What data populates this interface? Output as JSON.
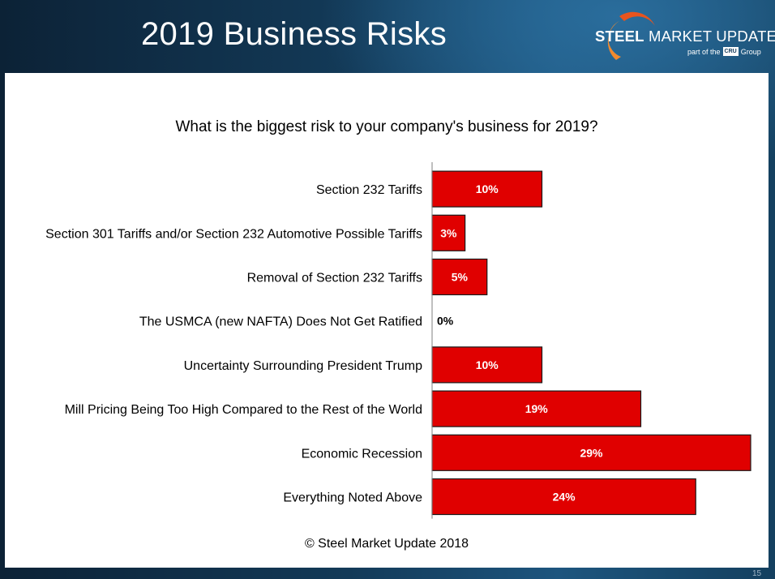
{
  "slide": {
    "title": "2019 Business Risks",
    "page_number": "15",
    "footer": "© Steel Market Update 2018"
  },
  "logo": {
    "name_bold": "STEEL",
    "name_rest": " MARKET UPDATE",
    "sub_prefix": "part of the",
    "sub_badge": "CRU",
    "sub_suffix": "Group",
    "accent": "#e8541e"
  },
  "chart_data": {
    "type": "bar",
    "orientation": "horizontal",
    "title": "What is the biggest risk to your company's business for 2019?",
    "categories": [
      "Section 232 Tariffs",
      "Section 301 Tariffs and/or Section 232 Automotive Possible Tariffs",
      "Removal of Section 232 Tariffs",
      "The USMCA (new NAFTA) Does Not Get Ratified",
      "Uncertainty Surrounding President Trump",
      "Mill Pricing Being Too High Compared to the Rest of the World",
      "Economic Recession",
      "Everything Noted Above"
    ],
    "values": [
      10,
      3,
      5,
      0,
      10,
      19,
      29,
      24
    ],
    "data_labels": [
      "10%",
      "3%",
      "5%",
      "0%",
      "10%",
      "19%",
      "29%",
      "24%"
    ],
    "xlim": [
      0,
      29
    ],
    "grid": false,
    "legend": "none",
    "bar_color": "#e00000",
    "bar_border": "#1a1a1a"
  }
}
